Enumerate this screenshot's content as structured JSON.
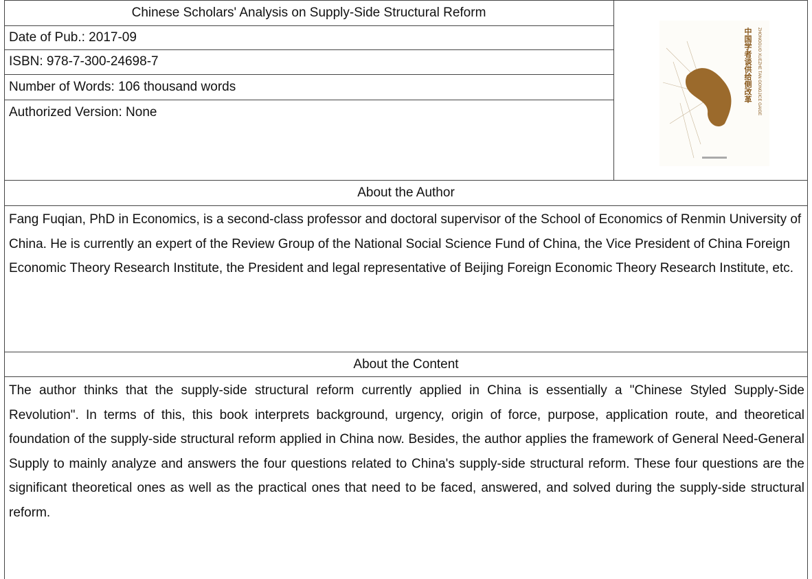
{
  "info": {
    "title": "Chinese Scholars' Analysis on Supply-Side Structural Reform",
    "rows": [
      "Date of Pub.: 2017-09",
      "ISBN: 978-7-300-24698-7",
      "Number of Words: 106 thousand words",
      "Authorized Version: None"
    ]
  },
  "cover": {
    "title": "中国学者谈供给侧改革",
    "pinyin": "ZHONGGUO XUEZHE TAN GONGJICE GAIGE"
  },
  "author": {
    "heading": "About the Author",
    "text": "Fang Fuqian, PhD in Economics, is a second-class professor and doctoral supervisor of the School of Economics of Renmin University of China. He is currently an expert of the Review Group of the National Social Science Fund of China, the Vice President of China Foreign Economic Theory Research Institute, the President and legal representative of Beijing Foreign Economic Theory Research Institute, etc."
  },
  "content": {
    "heading": "About the Content",
    "text": "The author thinks that the supply-side structural reform currently applied in China is essentially a \"Chinese Styled Supply-Side Revolution\". In terms of this, this book interprets background, urgency, origin of force, purpose, application route, and theoretical foundation of the supply-side structural reform applied in China now. Besides, the author applies the framework of General Need-General Supply to mainly analyze and answers the four questions related to China's supply-side structural reform. These four questions are the significant theoretical ones as well as the practical ones that need to be faced, answered, and solved during the supply-side structural reform."
  }
}
